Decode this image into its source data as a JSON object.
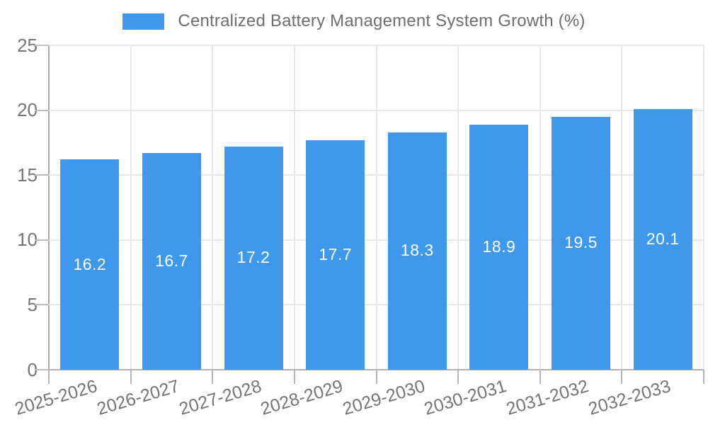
{
  "legend": {
    "label": "Centralized Battery Management System Growth (%)"
  },
  "chart_data": {
    "type": "bar",
    "title": "Centralized Battery Management System Growth (%)",
    "categories": [
      "2025-2026",
      "2026-2027",
      "2027-2028",
      "2028-2029",
      "2029-2030",
      "2030-2031",
      "2031-2032",
      "2032-2033"
    ],
    "values": [
      16.2,
      16.7,
      17.2,
      17.7,
      18.3,
      18.9,
      19.5,
      20.1
    ],
    "value_labels": [
      "16.2",
      "16.7",
      "17.2",
      "17.7",
      "18.3",
      "18.9",
      "19.5",
      "20.1"
    ],
    "xlabel": "",
    "ylabel": "",
    "ylim": [
      0,
      25
    ],
    "ytick_step": 5,
    "ytick_labels": [
      "0",
      "5",
      "10",
      "15",
      "20",
      "25"
    ],
    "grid": true,
    "legend_position": "top-center",
    "bar_color": "#3e99ed",
    "value_label_color": "#ffffff",
    "axis_text_color": "#757575",
    "gridline_color": "#e7e7e7"
  }
}
